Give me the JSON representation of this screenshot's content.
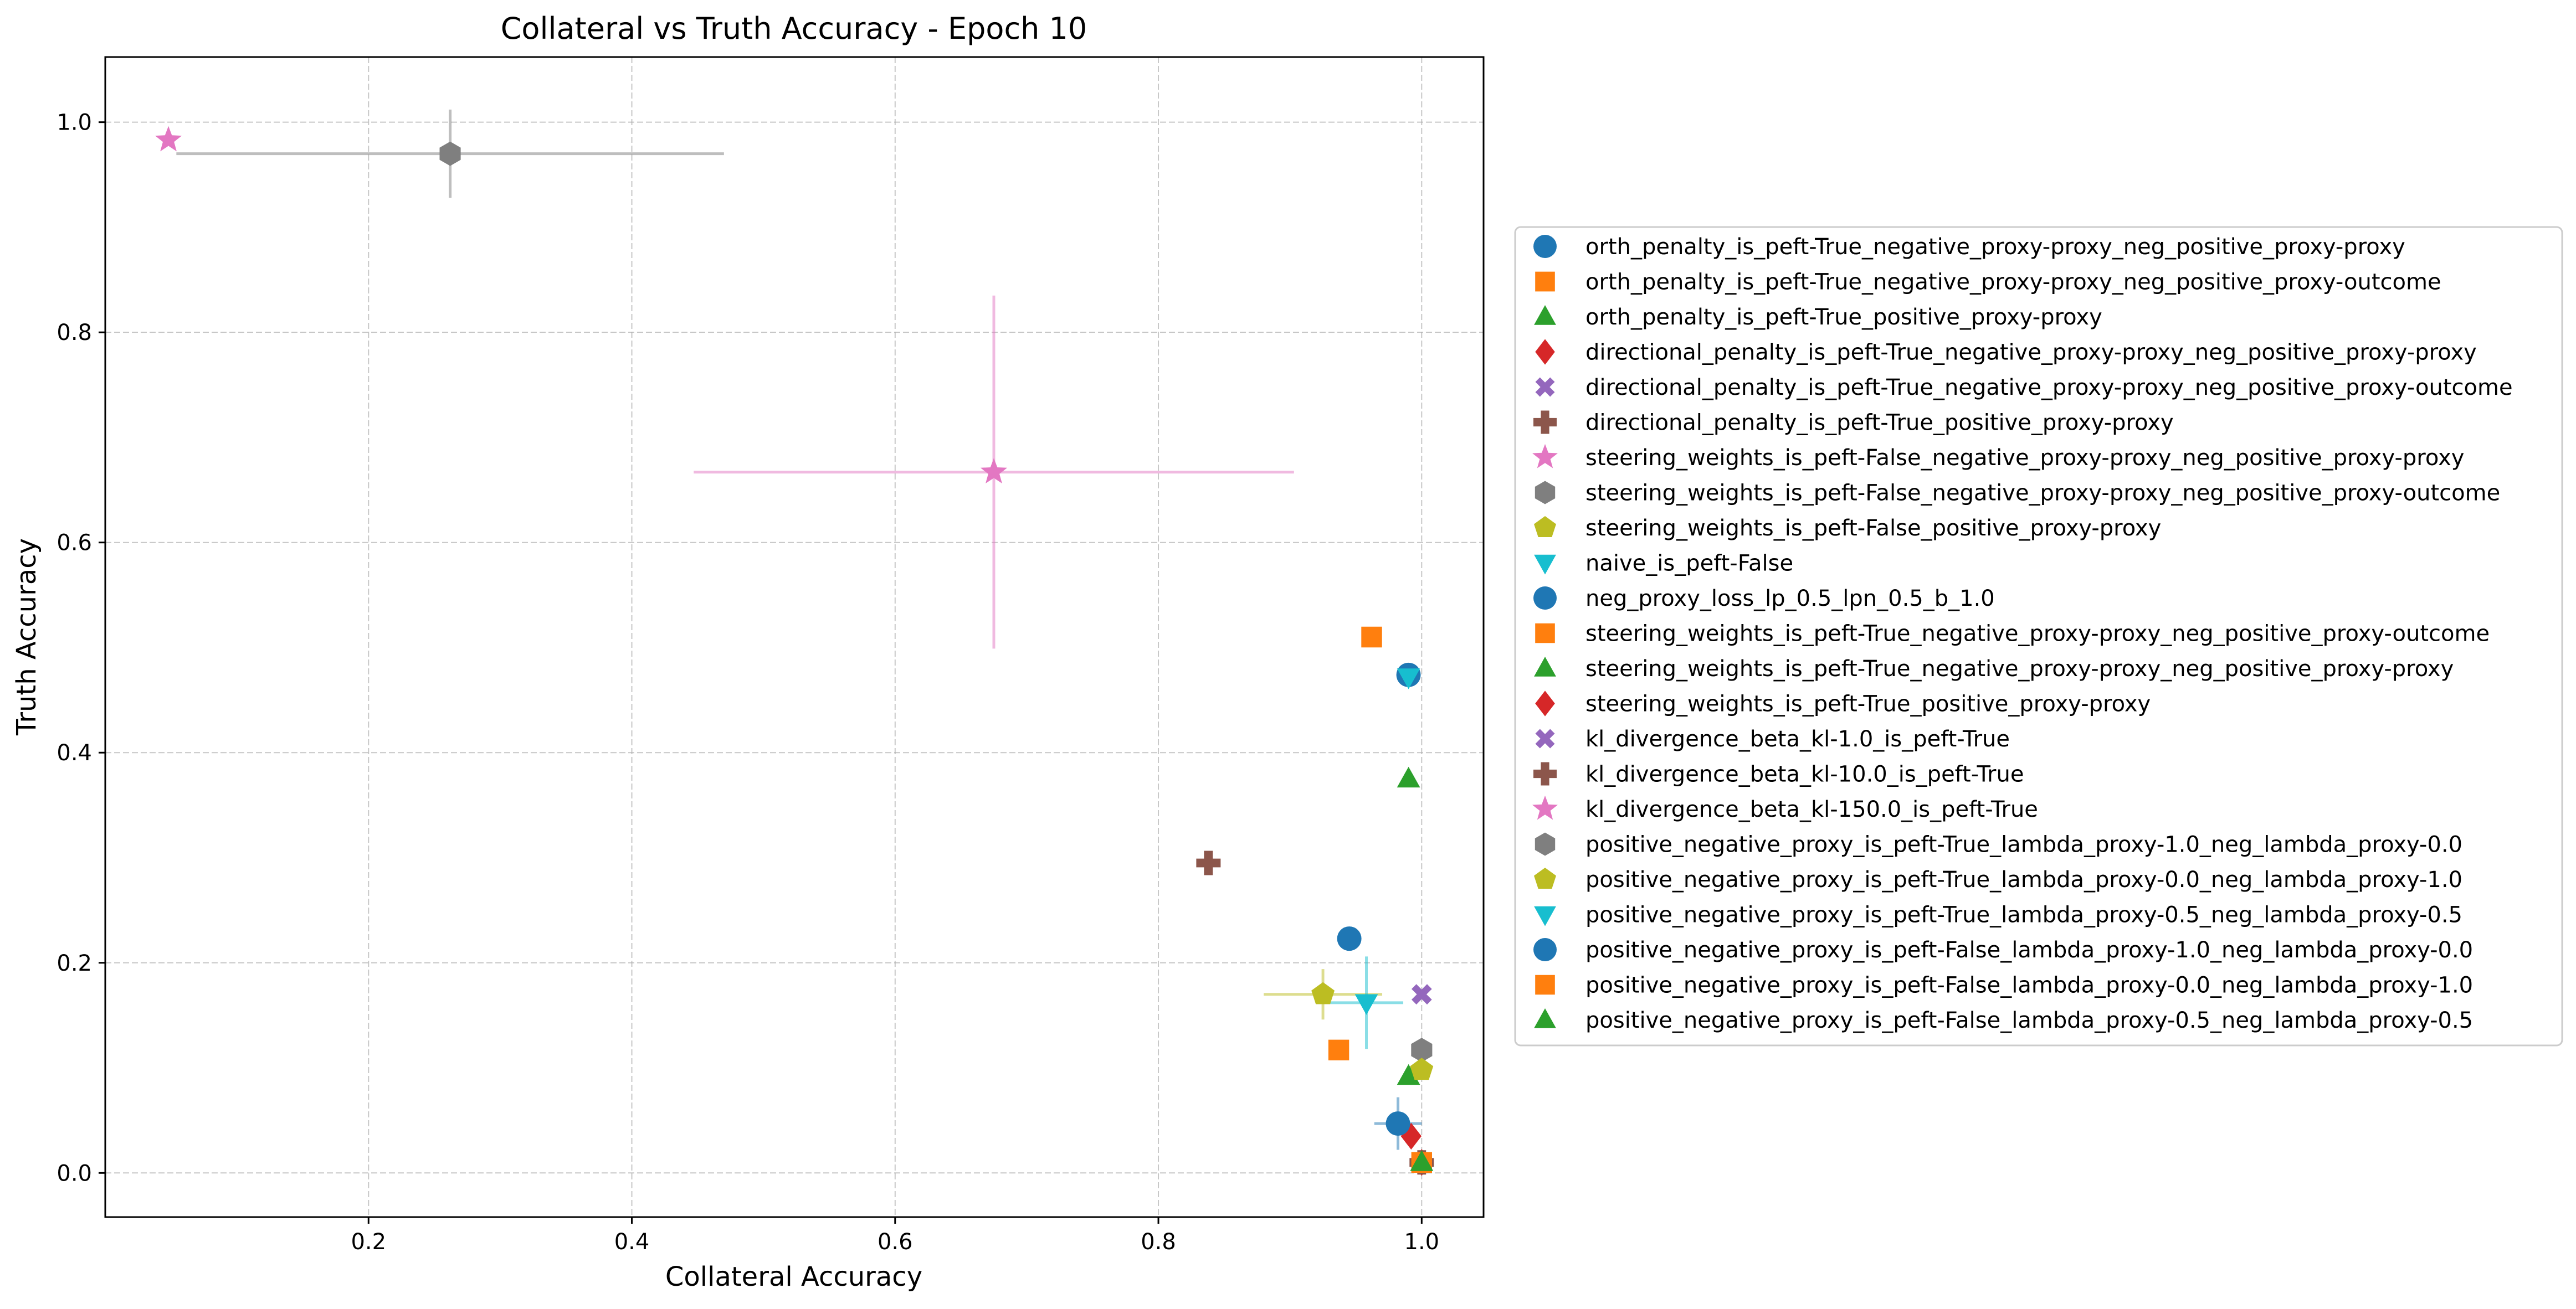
{
  "chart_data": {
    "type": "scatter",
    "title": "Collateral vs Truth Accuracy - Epoch 10",
    "xlabel": "Collateral Accuracy",
    "ylabel": "Truth Accuracy",
    "xlim": [
      0.0,
      1.047
    ],
    "ylim": [
      -0.042,
      1.062
    ],
    "xticks": [
      0.2,
      0.4,
      0.6,
      0.8,
      1.0
    ],
    "yticks": [
      0.0,
      0.2,
      0.4,
      0.6,
      0.8,
      1.0
    ],
    "xtick_labels": [
      "0.2",
      "0.4",
      "0.6",
      "0.8",
      "1.0"
    ],
    "ytick_labels": [
      "0.0",
      "0.2",
      "0.4",
      "0.6",
      "0.8",
      "1.0"
    ],
    "grid": true,
    "legend_position": "right, outside plot",
    "series": [
      {
        "name": "orth_penalty_is_peft-True_negative_proxy-proxy_neg_positive_proxy-proxy",
        "marker": "circle",
        "color": "#1f77b4",
        "x": 0.99,
        "y": 0.474,
        "xerr": 0.0,
        "yerr": 0.0
      },
      {
        "name": "orth_penalty_is_peft-True_negative_proxy-proxy_neg_positive_proxy-outcome",
        "marker": "square",
        "color": "#ff7f0e",
        "x": 0.962,
        "y": 0.51,
        "xerr": 0.0,
        "yerr": 0.0
      },
      {
        "name": "orth_penalty_is_peft-True_positive_proxy-proxy",
        "marker": "triangle-up",
        "color": "#2ca02c",
        "x": 0.99,
        "y": 0.375,
        "xerr": 0.0,
        "yerr": 0.0
      },
      {
        "name": "directional_penalty_is_peft-True_negative_proxy-proxy_neg_positive_proxy-proxy",
        "marker": "diamond",
        "color": "#d62728",
        "x": 0.992,
        "y": 0.035,
        "xerr": 0.0,
        "yerr": 0.0
      },
      {
        "name": "directional_penalty_is_peft-True_negative_proxy-proxy_neg_positive_proxy-outcome",
        "marker": "x-filled",
        "color": "#9467bd",
        "x": 1.0,
        "y": 0.17,
        "xerr": 0.0,
        "yerr": 0.0
      },
      {
        "name": "directional_penalty_is_peft-True_positive_proxy-proxy",
        "marker": "plus-filled",
        "color": "#8c564b",
        "x": 0.838,
        "y": 0.295,
        "xerr": 0.0,
        "yerr": 0.0
      },
      {
        "name": "steering_weights_is_peft-False_negative_proxy-proxy_neg_positive_proxy-proxy",
        "marker": "star",
        "color": "#e377c2",
        "x": 0.675,
        "y": 0.667,
        "xerr": 0.228,
        "yerr": 0.168
      },
      {
        "name": "steering_weights_is_peft-False_negative_proxy-proxy_neg_positive_proxy-outcome",
        "marker": "hexagon",
        "color": "#7f7f7f",
        "x": 0.262,
        "y": 0.97,
        "xerr": 0.208,
        "yerr": 0.042
      },
      {
        "name": "steering_weights_is_peft-False_positive_proxy-proxy",
        "marker": "pentagon",
        "color": "#bcbd22",
        "x": 0.925,
        "y": 0.17,
        "xerr": 0.045,
        "yerr": 0.024
      },
      {
        "name": "naive_is_peft-False",
        "marker": "triangle-down",
        "color": "#17becf",
        "x": 0.958,
        "y": 0.162,
        "xerr": 0.028,
        "yerr": 0.044
      },
      {
        "name": "neg_proxy_loss_lp_0.5_lpn_0.5_b_1.0",
        "marker": "circle",
        "color": "#1f77b4",
        "x": 0.945,
        "y": 0.223,
        "xerr": 0.0,
        "yerr": 0.0
      },
      {
        "name": "steering_weights_is_peft-True_negative_proxy-proxy_neg_positive_proxy-outcome",
        "marker": "square",
        "color": "#ff7f0e",
        "x": 0.937,
        "y": 0.117,
        "xerr": 0.0,
        "yerr": 0.0
      },
      {
        "name": "steering_weights_is_peft-True_negative_proxy-proxy_neg_positive_proxy-proxy",
        "marker": "triangle-up",
        "color": "#2ca02c",
        "x": 0.99,
        "y": 0.092,
        "xerr": 0.0,
        "yerr": 0.0
      },
      {
        "name": "steering_weights_is_peft-True_positive_proxy-proxy",
        "marker": "diamond",
        "color": "#d62728",
        "x": 1.0,
        "y": 0.01,
        "xerr": 0.0,
        "yerr": 0.0
      },
      {
        "name": "kl_divergence_beta_kl-1.0_is_peft-True",
        "marker": "x-filled",
        "color": "#9467bd",
        "x": 1.0,
        "y": 0.01,
        "xerr": 0.0,
        "yerr": 0.0
      },
      {
        "name": "kl_divergence_beta_kl-10.0_is_peft-True",
        "marker": "plus-filled",
        "color": "#8c564b",
        "x": 1.0,
        "y": 0.01,
        "xerr": 0.0,
        "yerr": 0.0
      },
      {
        "name": "kl_divergence_beta_kl-150.0_is_peft-True",
        "marker": "star",
        "color": "#e377c2",
        "x": 0.048,
        "y": 0.983,
        "xerr": 0.0,
        "yerr": 0.0
      },
      {
        "name": "positive_negative_proxy_is_peft-True_lambda_proxy-1.0_neg_lambda_proxy-0.0",
        "marker": "hexagon",
        "color": "#7f7f7f",
        "x": 1.0,
        "y": 0.117,
        "xerr": 0.0,
        "yerr": 0.0
      },
      {
        "name": "positive_negative_proxy_is_peft-True_lambda_proxy-0.0_neg_lambda_proxy-1.0",
        "marker": "pentagon",
        "color": "#bcbd22",
        "x": 1.0,
        "y": 0.098,
        "xerr": 0.0,
        "yerr": 0.0
      },
      {
        "name": "positive_negative_proxy_is_peft-True_lambda_proxy-0.5_neg_lambda_proxy-0.5",
        "marker": "triangle-down",
        "color": "#17becf",
        "x": 0.99,
        "y": 0.472,
        "xerr": 0.0,
        "yerr": 0.0
      },
      {
        "name": "positive_negative_proxy_is_peft-False_lambda_proxy-1.0_neg_lambda_proxy-0.0",
        "marker": "circle",
        "color": "#1f77b4",
        "x": 0.982,
        "y": 0.047,
        "xerr": 0.018,
        "yerr": 0.025
      },
      {
        "name": "positive_negative_proxy_is_peft-False_lambda_proxy-0.0_neg_lambda_proxy-1.0",
        "marker": "square",
        "color": "#ff7f0e",
        "x": 1.0,
        "y": 0.01,
        "xerr": 0.0,
        "yerr": 0.0
      },
      {
        "name": "positive_negative_proxy_is_peft-False_lambda_proxy-0.5_neg_lambda_proxy-0.5",
        "marker": "triangle-up",
        "color": "#2ca02c",
        "x": 1.0,
        "y": 0.01,
        "xerr": 0.0,
        "yerr": 0.0
      }
    ]
  }
}
